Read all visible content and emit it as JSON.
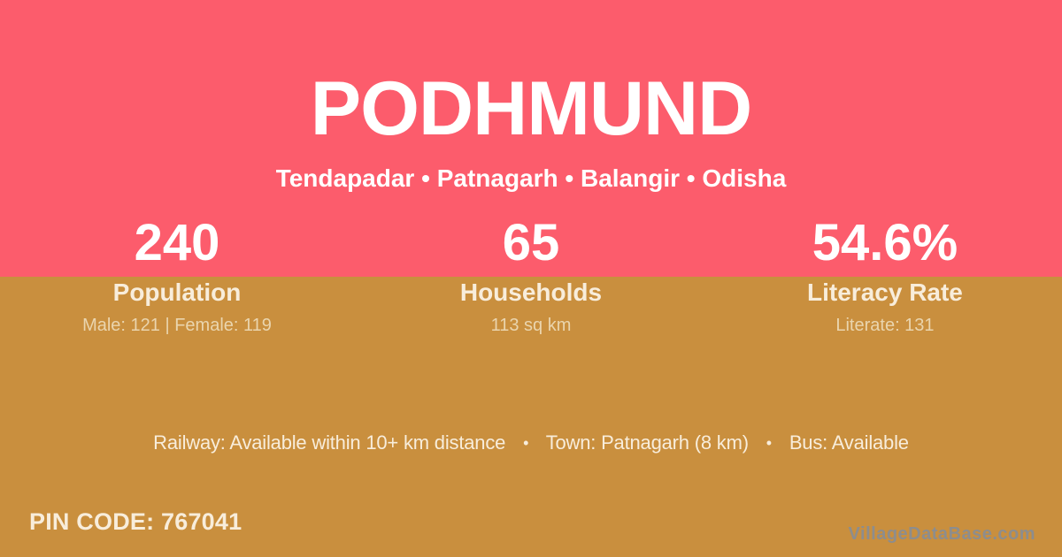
{
  "header": {
    "title": "PODHMUND",
    "subtitle": "Tendapadar • Patnagarh • Balangir • Odisha"
  },
  "stats": [
    {
      "value": "240",
      "label": "Population",
      "detail": "Male: 121 | Female: 119"
    },
    {
      "value": "65",
      "label": "Households",
      "detail": "113 sq km"
    },
    {
      "value": "54.6%",
      "label": "Literacy Rate",
      "detail": "Literate: 131"
    }
  ],
  "transport": {
    "separator": "•",
    "segments": [
      "Railway: Available within 10+ km distance",
      "Town: Patnagarh (8 km)",
      "Bus: Available"
    ]
  },
  "footer": {
    "pin_label": "PIN CODE:",
    "pin_value": "767041",
    "watermark": "VillageDataBase.com"
  },
  "colors": {
    "top_band": "#FC5C6C",
    "bottom_band": "#C98F3E",
    "text_white": "#FFFFFF",
    "text_cream": "#F8EDDB",
    "text_muted_cream": "#EAD5AE",
    "watermark_grey": "#8D8D8D"
  }
}
